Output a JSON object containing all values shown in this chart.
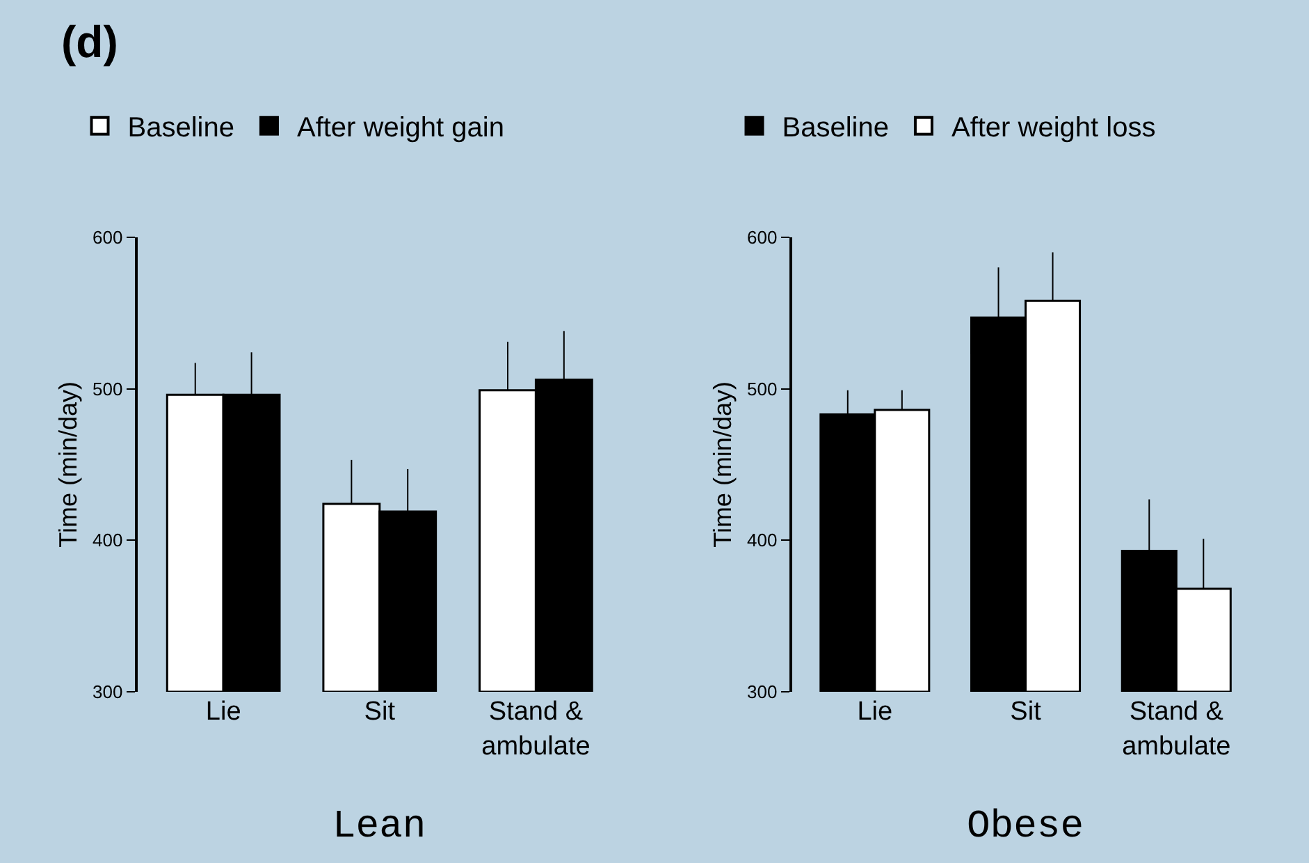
{
  "chart_data": [
    {
      "type": "bar",
      "title": "Lean",
      "ylabel": "Time (min/day)",
      "annotations": [
        "(d)"
      ],
      "categories": [
        "Lie",
        "Sit",
        "Stand &\nambulate"
      ],
      "ylim": [
        300,
        600
      ],
      "yticks": [
        300,
        400,
        500,
        600
      ],
      "grid": false,
      "legend": "top",
      "series": [
        {
          "name": "Baseline",
          "color": "#ffffff",
          "values": [
            496,
            424,
            499
          ],
          "errors": [
            [
              496,
              517
            ],
            [
              424,
              453
            ],
            [
              499,
              531
            ]
          ]
        },
        {
          "name": "After weight gain",
          "color": "#000000",
          "values": [
            496,
            419,
            506
          ],
          "errors": [
            [
              496,
              524
            ],
            [
              419,
              447
            ],
            [
              506,
              538
            ]
          ]
        }
      ]
    },
    {
      "type": "bar",
      "title": "Obese",
      "ylabel": "Time (min/day)",
      "categories": [
        "Lie",
        "Sit",
        "Stand &\nambulate"
      ],
      "ylim": [
        300,
        600
      ],
      "yticks": [
        300,
        400,
        500,
        600
      ],
      "grid": false,
      "legend": "top",
      "series": [
        {
          "name": "Baseline",
          "color": "#000000",
          "values": [
            483,
            547,
            393
          ],
          "errors": [
            [
              483,
              499
            ],
            [
              547,
              580
            ],
            [
              393,
              427
            ]
          ]
        },
        {
          "name": "After weight loss",
          "color": "#ffffff",
          "values": [
            486,
            558,
            368
          ],
          "errors": [
            [
              486,
              499
            ],
            [
              558,
              590
            ],
            [
              368,
              401
            ]
          ]
        }
      ]
    }
  ]
}
